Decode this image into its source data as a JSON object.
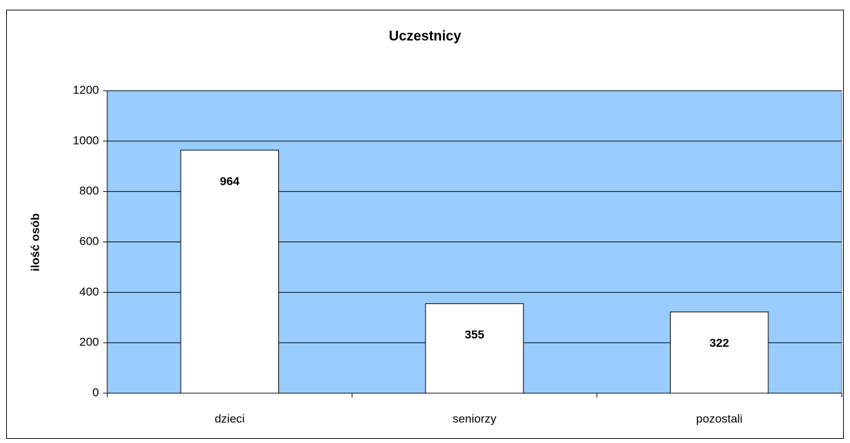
{
  "chart_data": {
    "type": "bar",
    "title": "Uczestnicy",
    "y_label": "ilość osób",
    "categories": [
      "dzieci",
      "seniorzy",
      "pozostali"
    ],
    "values": [
      964,
      355,
      322
    ],
    "color": "#ffffff",
    "background": "#99ccff",
    "ylim": [
      0,
      1200
    ],
    "yticks": [
      0,
      200,
      400,
      600,
      800,
      1000,
      1200
    ],
    "grid": true
  }
}
